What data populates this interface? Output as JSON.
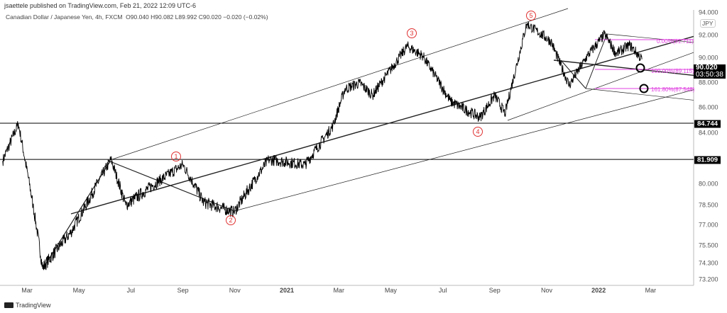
{
  "header": {
    "published": "jsaettele published on TradingView.com, Feb 21, 2022 12:09 UTC-6",
    "symbol": "Canadian Dollar / Japanese Yen, 4h, FXCM",
    "ohlc": "O90.040 H90.082 L89.992 C90.020 −0.020 (−0.02%)"
  },
  "chart_data": {
    "type": "line",
    "title": "Canadian Dollar / Japanese Yen, 4h, FXCM",
    "currency": "JPY",
    "last_price": "90.020",
    "countdown": "03:50:38",
    "y_ticks": [
      "94.000",
      "92.000",
      "90.000",
      "88.000",
      "86.000",
      "84.000",
      "80.000",
      "78.500",
      "77.000",
      "75.500",
      "74.300",
      "73.200"
    ],
    "x_ticks": [
      "Mar",
      "May",
      "Jul",
      "Sep",
      "Nov",
      "2021",
      "Mar",
      "May",
      "Jul",
      "Sep",
      "Nov",
      "2022",
      "Mar"
    ],
    "levels": [
      "84.744",
      "81.909"
    ],
    "fib_labels": [
      "0.00%(91.711)",
      "100.00%(89.115)",
      "161.80%(87.548)"
    ],
    "wave_labels": [
      "1",
      "2",
      "3",
      "4",
      "5"
    ],
    "price_pivots": [
      {
        "t": "2020-02-03",
        "p": 81.8
      },
      {
        "t": "2020-02-21",
        "p": 84.7
      },
      {
        "t": "2020-03-08",
        "p": 78.5
      },
      {
        "t": "2020-03-19",
        "p": 74.0
      },
      {
        "t": "2020-04-22",
        "p": 76.5
      },
      {
        "t": "2020-06-08",
        "p": 81.9
      },
      {
        "t": "2020-06-25",
        "p": 78.5
      },
      {
        "t": "2020-09-01",
        "p": 81.5
      },
      {
        "t": "2020-09-25",
        "p": 78.7
      },
      {
        "t": "2020-10-30",
        "p": 78.0
      },
      {
        "t": "2020-12-10",
        "p": 81.9
      },
      {
        "t": "2021-01-22",
        "p": 81.5
      },
      {
        "t": "2021-02-24",
        "p": 84.5
      },
      {
        "t": "2021-03-08",
        "p": 87.5
      },
      {
        "t": "2021-03-25",
        "p": 88.0
      },
      {
        "t": "2021-04-10",
        "p": 87.0
      },
      {
        "t": "2021-05-20",
        "p": 91.1
      },
      {
        "t": "2021-06-08",
        "p": 90.3
      },
      {
        "t": "2021-07-10",
        "p": 86.5
      },
      {
        "t": "2021-08-14",
        "p": 85.2
      },
      {
        "t": "2021-08-31",
        "p": 87.0
      },
      {
        "t": "2021-09-13",
        "p": 85.5
      },
      {
        "t": "2021-10-08",
        "p": 93.0
      },
      {
        "t": "2021-11-06",
        "p": 91.5
      },
      {
        "t": "2021-11-27",
        "p": 87.8
      },
      {
        "t": "2021-12-18",
        "p": 90.3
      },
      {
        "t": "2022-01-08",
        "p": 92.1
      },
      {
        "t": "2022-01-21",
        "p": 90.5
      },
      {
        "t": "2022-02-07",
        "p": 91.2
      },
      {
        "t": "2022-02-21",
        "p": 90.02
      }
    ]
  },
  "footer": {
    "brand": "TradingView"
  },
  "colors": {
    "price": "#000000",
    "fib": "#e040e0",
    "wave": "#e03030"
  }
}
